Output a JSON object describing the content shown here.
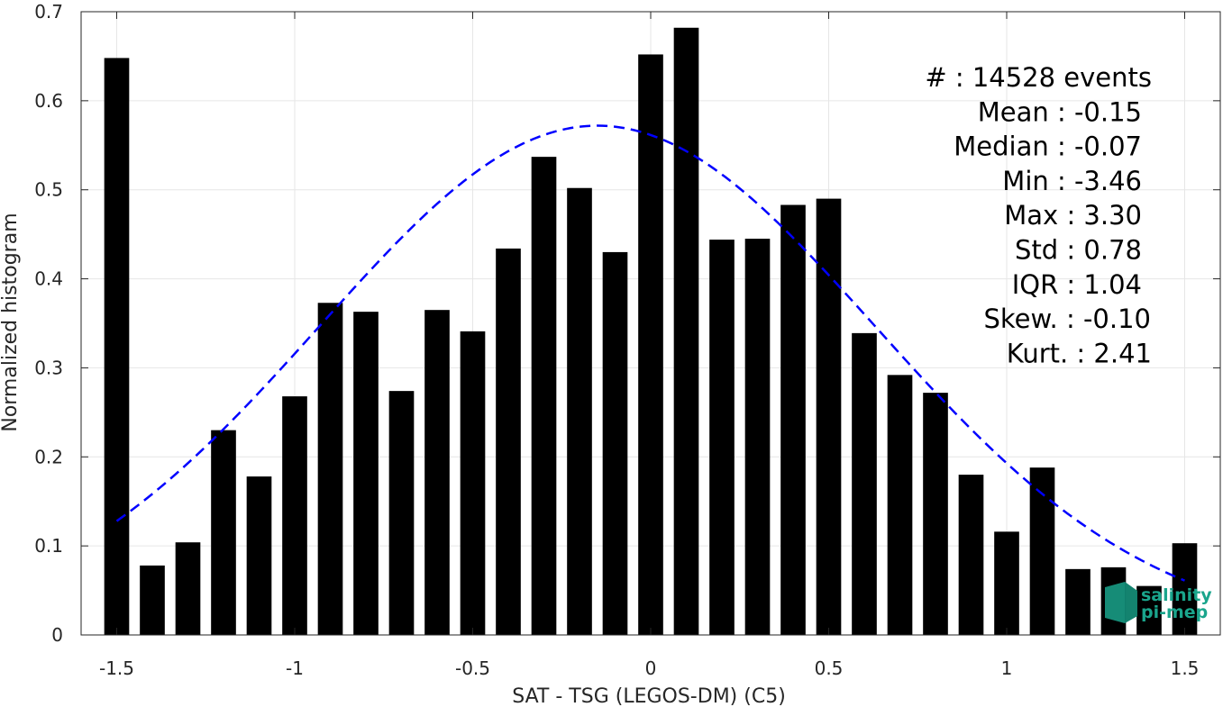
{
  "chart_data": {
    "type": "bar",
    "xlabel": "SAT - TSG (LEGOS-DM) (C5)",
    "ylabel": "Normalized histogram",
    "xlim": [
      -1.6,
      1.6
    ],
    "ylim": [
      0,
      0.7
    ],
    "grid": true,
    "xticks": [
      -1.5,
      -1,
      -0.5,
      0,
      0.5,
      1,
      1.5
    ],
    "xtick_labels": [
      "-1.5",
      "-1",
      "-0.5",
      "0",
      "0.5",
      "1",
      "1.5"
    ],
    "yticks": [
      0,
      0.1,
      0.2,
      0.3,
      0.4,
      0.5,
      0.6,
      0.7
    ],
    "ytick_labels": [
      "0",
      "0.1",
      "0.2",
      "0.3",
      "0.4",
      "0.5",
      "0.6",
      "0.7"
    ],
    "bar_width": 0.07,
    "bar_color": "#000000",
    "bins": [
      -1.5,
      -1.4,
      -1.3,
      -1.2,
      -1.1,
      -1.0,
      -0.9,
      -0.8,
      -0.7,
      -0.6,
      -0.5,
      -0.4,
      -0.3,
      -0.2,
      -0.1,
      0.0,
      0.1,
      0.2,
      0.3,
      0.4,
      0.5,
      0.6,
      0.7,
      0.8,
      0.9,
      1.0,
      1.1,
      1.2,
      1.3,
      1.4,
      1.5
    ],
    "values": [
      0.648,
      0.078,
      0.104,
      0.23,
      0.178,
      0.268,
      0.373,
      0.363,
      0.274,
      0.365,
      0.341,
      0.434,
      0.537,
      0.502,
      0.43,
      0.652,
      0.682,
      0.444,
      0.445,
      0.483,
      0.49,
      0.339,
      0.292,
      0.272,
      0.18,
      0.116,
      0.188,
      0.074,
      0.076,
      0.055,
      0.103
    ],
    "fit_curve": {
      "type": "normal",
      "mean": -0.15,
      "std": 0.78,
      "x_range": [
        -1.5,
        1.5
      ],
      "color": "#0000ff",
      "style": "dashed"
    },
    "stats": [
      "#  : 14528 events",
      "Mean : -0.15",
      "Median : -0.07",
      "Min : -3.46",
      "Max : 3.30",
      "Std : 0.78",
      "IQR : 1.04",
      "Skew. : -0.10",
      "Kurt. : 2.41"
    ]
  },
  "logo": {
    "line1": "salinity",
    "line2": "pi-mep",
    "color": "#1aa58c"
  }
}
